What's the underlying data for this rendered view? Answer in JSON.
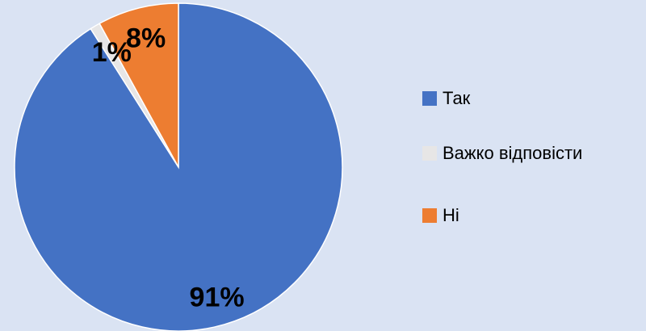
{
  "chart_data": {
    "type": "pie",
    "categories": [
      "Так",
      "Важко відповісти",
      "Ні"
    ],
    "values": [
      91,
      1,
      8
    ],
    "value_labels": [
      "91%",
      "1%",
      "8%"
    ],
    "colors": [
      "#4472c4",
      "#e7e6e6",
      "#ed7d31"
    ],
    "legend": "right"
  }
}
